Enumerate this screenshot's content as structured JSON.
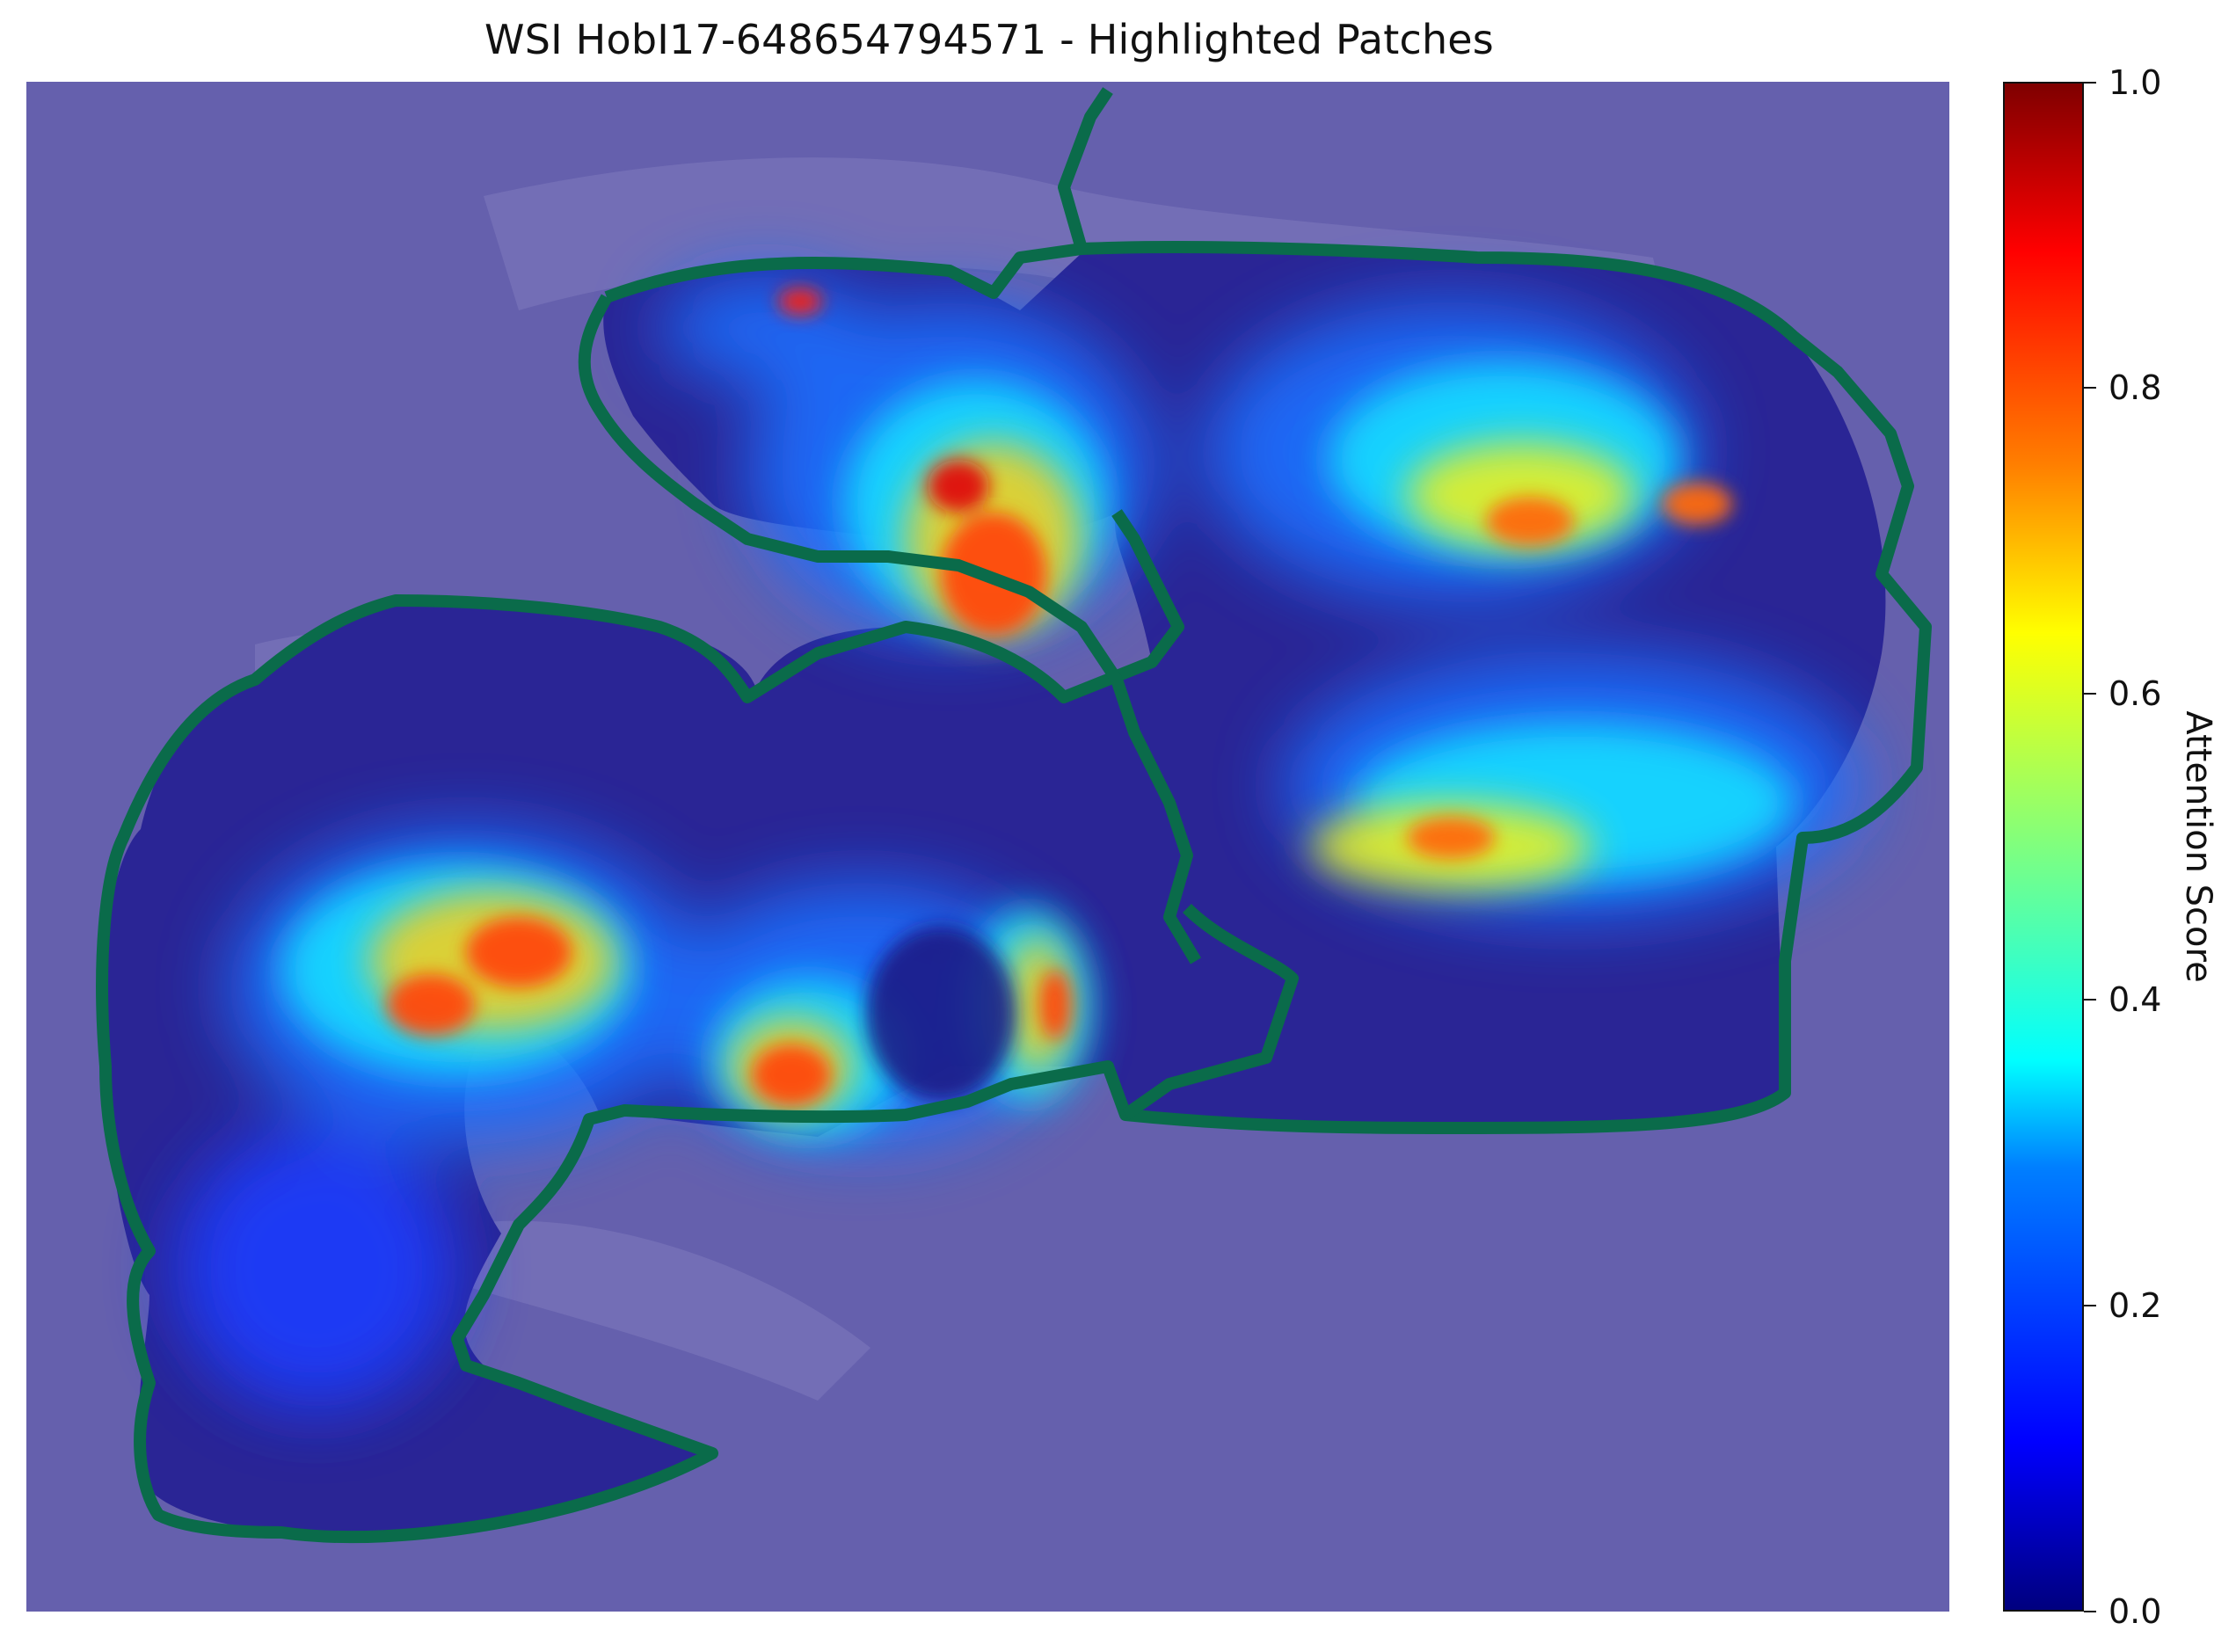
{
  "title": "WSI HobI17-648654794571 - Highlighted Patches",
  "colors": {
    "background": "#6560ad",
    "tissue_outline": "#0a6b4a",
    "tissue_dark": "#1e1a8a",
    "tissue_light": "#8a86c4"
  },
  "chart_data": {
    "type": "heatmap",
    "title": "WSI HobI17-648654794571 - Highlighted Patches",
    "xlabel": "",
    "ylabel": "",
    "colorbar": {
      "label": "Attention Score",
      "colormap": "jet",
      "range": [
        0.0,
        1.0
      ],
      "ticks": [
        "0.0",
        "0.2",
        "0.4",
        "0.6",
        "0.8",
        "1.0"
      ]
    },
    "axes_visible": false,
    "grid": false
  }
}
